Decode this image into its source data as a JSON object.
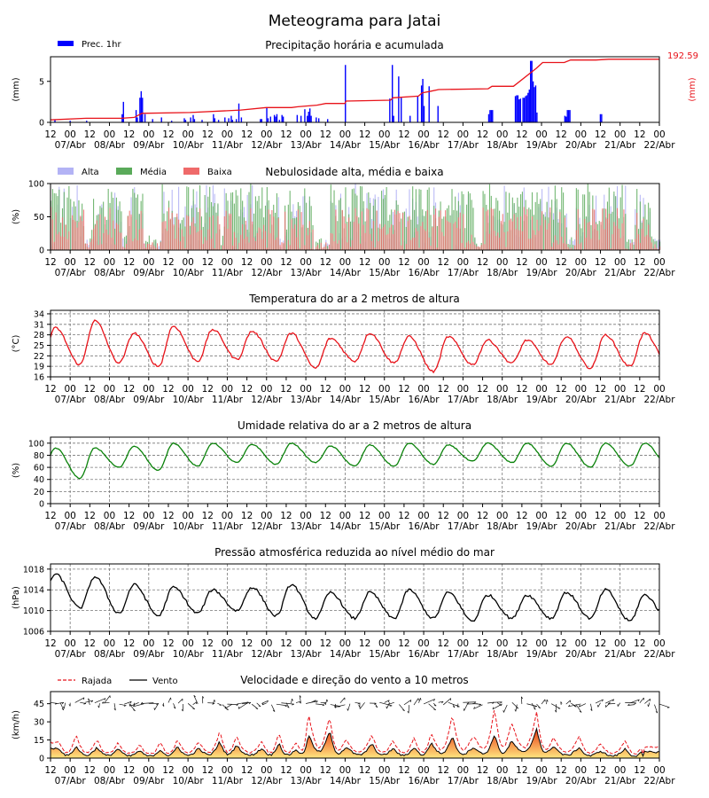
{
  "page": {
    "title": "Meteograma para Jatai"
  },
  "colors": {
    "precip_bar": "#0000ff",
    "accum_line": "#e8131a",
    "cloud_high": "#b3b3f5",
    "cloud_mid": "#5aaa5a",
    "cloud_low": "#ef6a6a",
    "temp_line": "#e8131a",
    "humid_line": "#0a820a",
    "press_line": "#000000",
    "gust_line": "#e8131a",
    "wind_line": "#000000",
    "wind_fill_top": "#e8330f",
    "wind_fill_bottom": "#ffe680"
  },
  "time_axis": {
    "hour_ticks": [
      "12",
      "00",
      "12",
      "00",
      "12",
      "00",
      "12",
      "00",
      "12",
      "00",
      "12",
      "00",
      "12",
      "00",
      "12",
      "00",
      "12",
      "00",
      "12",
      "00",
      "12",
      "00",
      "12",
      "00",
      "12",
      "00",
      "12",
      "00",
      "12",
      "00",
      "12",
      "00"
    ],
    "day_labels": [
      "07/Abr",
      "08/Abr",
      "09/Abr",
      "10/Abr",
      "11/Abr",
      "12/Abr",
      "13/Abr",
      "14/Abr",
      "15/Abr",
      "16/Abr",
      "17/Abr",
      "18/Abr",
      "19/Abr",
      "20/Abr",
      "21/Abr",
      "22/Abr"
    ],
    "start_hour": 12,
    "total_hours": 372
  },
  "chart_data": [
    {
      "id": "precip",
      "type": "bar",
      "title": "Precipitação horária e acumulada",
      "ylabel": "(mm)",
      "ylabel_right": "(mm)",
      "ylim": [
        0,
        8
      ],
      "yticks": [
        0,
        5
      ],
      "legend": [
        "Prec. 1hr"
      ],
      "accum_total_label": "192.59",
      "bars": [
        [
          3,
          0.3
        ],
        [
          15,
          0.2
        ],
        [
          28,
          0.2
        ],
        [
          56,
          1.0
        ],
        [
          57,
          2.5
        ],
        [
          67,
          1.5
        ],
        [
          68,
          0.6
        ],
        [
          70,
          3.0
        ],
        [
          71,
          3.8
        ],
        [
          72,
          3.0
        ],
        [
          74,
          1.0
        ],
        [
          80,
          0.4
        ],
        [
          87,
          0.6
        ],
        [
          95,
          0.2
        ],
        [
          105,
          0.5
        ],
        [
          106,
          0.3
        ],
        [
          110,
          0.6
        ],
        [
          112,
          0.9
        ],
        [
          113,
          0.4
        ],
        [
          119,
          0.3
        ],
        [
          128,
          1.0
        ],
        [
          129,
          0.5
        ],
        [
          132,
          0.3
        ],
        [
          137,
          0.6
        ],
        [
          140,
          0.5
        ],
        [
          142,
          0.8
        ],
        [
          143,
          0.3
        ],
        [
          146,
          0.4
        ],
        [
          148,
          2.3
        ],
        [
          150,
          0.6
        ],
        [
          165,
          0.4
        ],
        [
          166,
          0.4
        ],
        [
          170,
          1.8
        ],
        [
          171,
          0.5
        ],
        [
          173,
          0.7
        ],
        [
          176,
          0.9
        ],
        [
          177,
          0.7
        ],
        [
          178,
          1.0
        ],
        [
          180,
          0.3
        ],
        [
          182,
          0.9
        ],
        [
          183,
          0.7
        ],
        [
          194,
          0.9
        ],
        [
          197,
          0.8
        ],
        [
          200,
          1.6
        ],
        [
          202,
          0.8
        ],
        [
          203,
          1.3
        ],
        [
          204,
          1.7
        ],
        [
          205,
          0.8
        ],
        [
          209,
          0.6
        ],
        [
          211,
          0.5
        ],
        [
          218,
          0.4
        ],
        [
          232,
          7.0
        ],
        [
          267,
          2.9
        ],
        [
          269,
          7.0
        ],
        [
          270,
          0.8
        ],
        [
          274,
          5.6
        ],
        [
          276,
          3.0
        ],
        [
          283,
          0.8
        ],
        [
          289,
          3.2
        ],
        [
          292,
          4.5
        ],
        [
          293,
          5.3
        ],
        [
          294,
          2.0
        ],
        [
          298,
          4.4
        ],
        [
          305,
          2.0
        ],
        [
          345,
          1.0
        ],
        [
          346,
          1.5
        ],
        [
          347,
          1.5
        ],
        [
          348,
          1.5
        ],
        [
          366,
          3.2
        ],
        [
          367,
          3.3
        ],
        [
          368,
          3.3
        ],
        [
          369,
          2.8
        ],
        [
          370,
          2.9
        ],
        [
          372,
          3.0
        ],
        [
          373,
          3.0
        ],
        [
          374,
          3.2
        ],
        [
          375,
          3.3
        ],
        [
          376,
          3.6
        ],
        [
          377,
          4.0
        ],
        [
          378,
          7.5
        ],
        [
          379,
          7.5
        ],
        [
          380,
          5.0
        ],
        [
          381,
          4.3
        ],
        [
          382,
          4.5
        ],
        [
          383,
          1.2
        ],
        [
          405,
          0.8
        ],
        [
          406,
          0.7
        ],
        [
          407,
          1.5
        ],
        [
          408,
          1.5
        ],
        [
          409,
          1.5
        ],
        [
          433,
          1.0
        ],
        [
          434,
          1.0
        ]
      ],
      "accum": [
        [
          0,
          0.3
        ],
        [
          28,
          0.5
        ],
        [
          56,
          0.5
        ],
        [
          66,
          0.6
        ],
        [
          72,
          1.1
        ],
        [
          110,
          1.2
        ],
        [
          150,
          1.5
        ],
        [
          170,
          1.8
        ],
        [
          190,
          1.8
        ],
        [
          195,
          1.9
        ],
        [
          210,
          2.1
        ],
        [
          217,
          2.3
        ],
        [
          232,
          2.3
        ],
        [
          233,
          2.6
        ],
        [
          268,
          2.7
        ],
        [
          270,
          3.0
        ],
        [
          290,
          3.2
        ],
        [
          293,
          3.6
        ],
        [
          300,
          3.8
        ],
        [
          306,
          4.0
        ],
        [
          345,
          4.1
        ],
        [
          348,
          4.4
        ],
        [
          365,
          4.4
        ],
        [
          383,
          6.6
        ],
        [
          388,
          7.3
        ],
        [
          405,
          7.3
        ],
        [
          410,
          7.6
        ],
        [
          430,
          7.6
        ],
        [
          440,
          7.7
        ],
        [
          480,
          7.7
        ]
      ]
    },
    {
      "id": "clouds",
      "type": "bar",
      "title": "Nebulosidade alta, média e baixa",
      "ylabel": "(%)",
      "ylim": [
        0,
        100
      ],
      "yticks": [
        0,
        50,
        100
      ],
      "legend": [
        "Alta",
        "Média",
        "Baixa"
      ]
    },
    {
      "id": "temp",
      "type": "line",
      "title": "Temperatura do ar a 2 metros de altura",
      "ylabel": "(°C)",
      "ylim": [
        16,
        35
      ],
      "yticks": [
        16,
        19,
        22,
        25,
        28,
        31,
        34
      ],
      "daily_max": [
        30.0,
        32.0,
        28.5,
        30.5,
        29.5,
        29.0,
        28.5,
        27.0,
        28.5,
        27.5,
        27.5,
        26.5,
        26.5,
        27.5,
        28.0,
        28.5
      ],
      "daily_min": [
        19.5,
        19.5,
        20.0,
        19.0,
        20.5,
        21.0,
        20.5,
        18.5,
        20.5,
        20.0,
        17.5,
        19.5,
        20.0,
        19.5,
        18.5,
        19.0
      ]
    },
    {
      "id": "humid",
      "type": "line",
      "title": "Umidade relativa do ar a 2 metros de altura",
      "ylabel": "(%)",
      "ylim": [
        0,
        110
      ],
      "yticks": [
        0,
        20,
        40,
        60,
        80,
        100
      ],
      "daily_max": [
        92,
        92,
        95,
        100,
        100,
        98,
        100,
        95,
        97,
        100,
        97,
        100,
        100,
        100,
        100,
        100
      ],
      "daily_min": [
        45,
        42,
        60,
        55,
        62,
        68,
        65,
        68,
        62,
        62,
        65,
        70,
        68,
        62,
        60,
        62
      ]
    },
    {
      "id": "press",
      "type": "line",
      "title": "Pressão atmosférica reduzida ao nível médio do mar",
      "ylabel": "(hPa)",
      "ylim": [
        1006,
        1019
      ],
      "yticks": [
        1006,
        1010,
        1014,
        1018
      ],
      "daily_max": [
        1017,
        1016.5,
        1015,
        1014.5,
        1014,
        1014.5,
        1015,
        1013.5,
        1013.5,
        1014,
        1013.5,
        1013,
        1013,
        1013.5,
        1014,
        1013
      ],
      "daily_min": [
        1012,
        1010.5,
        1009.5,
        1009,
        1009.5,
        1010,
        1009,
        1008.5,
        1008.5,
        1008.5,
        1008.5,
        1008,
        1008.5,
        1008.5,
        1008.5,
        1008
      ]
    },
    {
      "id": "wind",
      "type": "area",
      "title": "Velocidade e direção do vento a 10 metros",
      "ylabel": "(km/h)",
      "ylim": [
        0,
        55
      ],
      "yticks": [
        0,
        15,
        30,
        45
      ],
      "legend": [
        "Rajada",
        "Vento"
      ],
      "wind_peaks": [
        [
          10,
          8
        ],
        [
          30,
          10
        ],
        [
          55,
          9
        ],
        [
          80,
          8
        ],
        [
          105,
          6
        ],
        [
          130,
          7
        ],
        [
          150,
          10
        ],
        [
          175,
          8
        ],
        [
          200,
          14
        ],
        [
          220,
          11
        ],
        [
          250,
          8
        ],
        [
          270,
          13
        ],
        [
          290,
          7
        ],
        [
          305,
          20
        ],
        [
          330,
          23
        ],
        [
          350,
          9
        ],
        [
          380,
          12
        ],
        [
          405,
          8
        ],
        [
          430,
          9
        ],
        [
          450,
          13
        ],
        [
          475,
          18
        ],
        [
          500,
          9
        ],
        [
          525,
          20
        ],
        [
          545,
          14
        ],
        [
          575,
          25
        ],
        [
          595,
          10
        ],
        [
          625,
          9
        ],
        [
          650,
          6
        ],
        [
          680,
          8
        ],
        [
          700,
          5
        ]
      ],
      "gust_peaks": [
        [
          10,
          13
        ],
        [
          30,
          20
        ],
        [
          55,
          15
        ],
        [
          80,
          13
        ],
        [
          105,
          11
        ],
        [
          130,
          13
        ],
        [
          150,
          16
        ],
        [
          175,
          14
        ],
        [
          200,
          22
        ],
        [
          220,
          18
        ],
        [
          250,
          14
        ],
        [
          270,
          22
        ],
        [
          290,
          12
        ],
        [
          305,
          37
        ],
        [
          330,
          35
        ],
        [
          350,
          15
        ],
        [
          380,
          20
        ],
        [
          405,
          14
        ],
        [
          430,
          17
        ],
        [
          450,
          20
        ],
        [
          475,
          37
        ],
        [
          500,
          18
        ],
        [
          525,
          42
        ],
        [
          545,
          30
        ],
        [
          575,
          38
        ],
        [
          595,
          17
        ],
        [
          625,
          18
        ],
        [
          650,
          12
        ],
        [
          680,
          15
        ],
        [
          700,
          9
        ]
      ]
    }
  ]
}
